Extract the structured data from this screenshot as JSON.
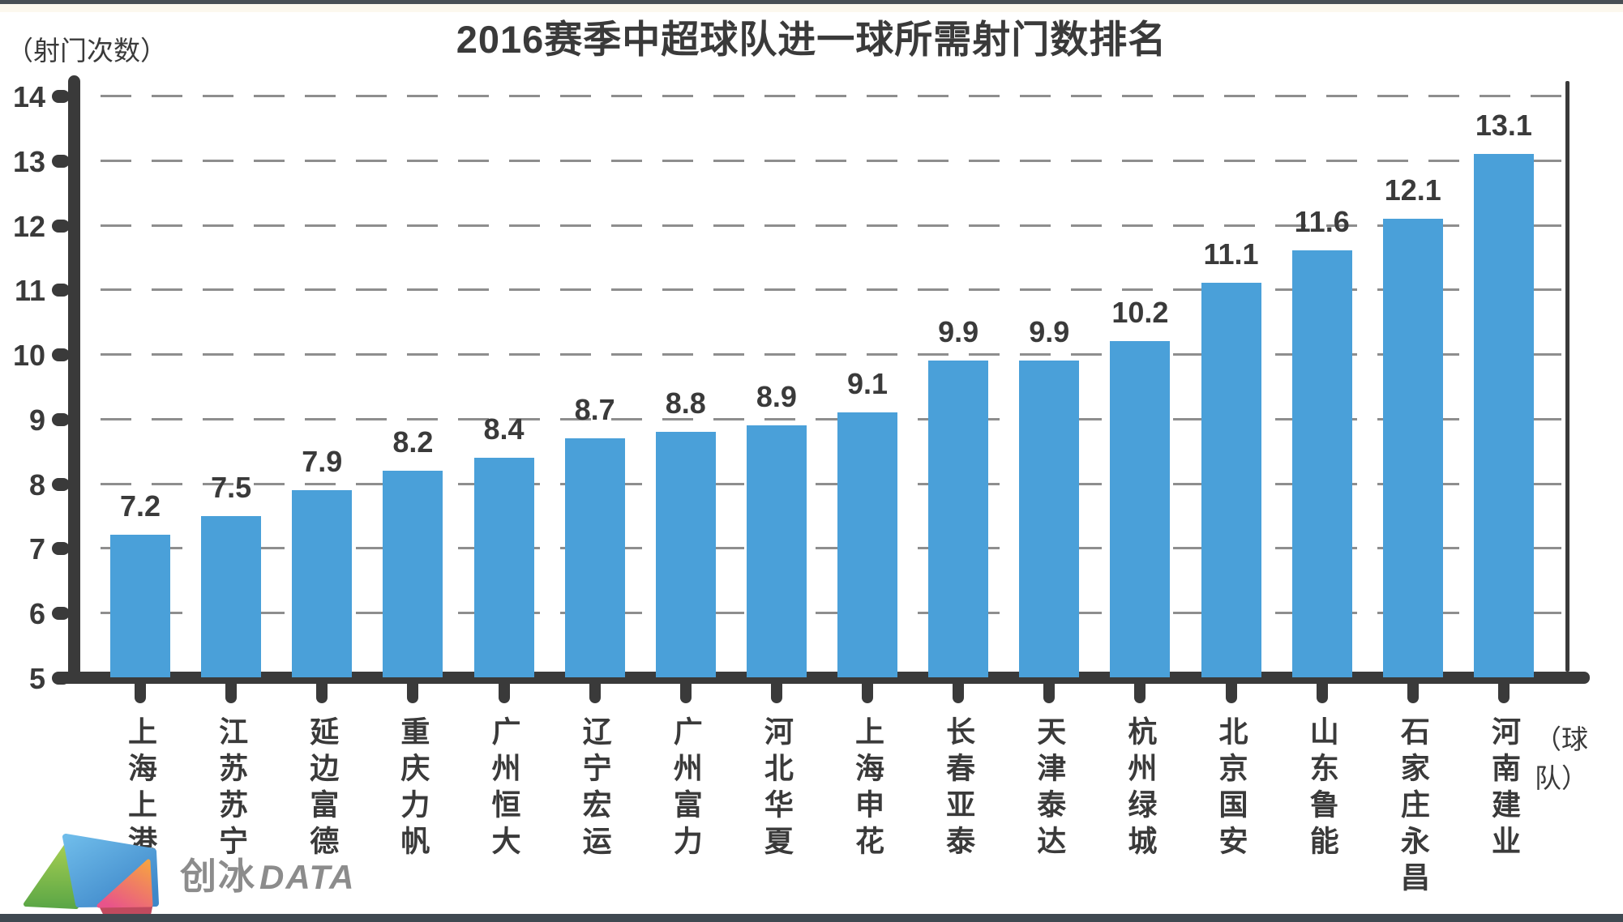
{
  "chart_data": {
    "type": "bar",
    "title": "2016赛季中超球队进一球所需射门数排名",
    "ylabel": "（射门次数）",
    "xlabel": "（球队）",
    "categories": [
      "上海上港",
      "江苏苏宁",
      "延边富德",
      "重庆力帆",
      "广州恒大",
      "辽宁宏运",
      "广州富力",
      "河北华夏",
      "上海申花",
      "长春亚泰",
      "天津泰达",
      "杭州绿城",
      "北京国安",
      "山东鲁能",
      "石家庄永昌",
      "河南建业"
    ],
    "values": [
      7.2,
      7.5,
      7.9,
      8.2,
      8.4,
      8.7,
      8.8,
      8.9,
      9.1,
      9.9,
      9.9,
      10.2,
      11.1,
      11.6,
      12.1,
      13.1
    ],
    "ylim": [
      5,
      14
    ],
    "ytick_step": 1,
    "grid": "horizontal-dashed",
    "legend": "none",
    "value_labels": true
  },
  "colors": {
    "bar": "#4AA0D9",
    "axis": "#3A3A3A",
    "grid": "#8E8E8E",
    "top_strip": "#484F55",
    "cream_strip": "#FCF8EE",
    "bottom_strip": "#3F4951",
    "logo_text": "#8C8C8C"
  },
  "logo": {
    "text_zh": "创冰",
    "text_en": "DATA"
  }
}
